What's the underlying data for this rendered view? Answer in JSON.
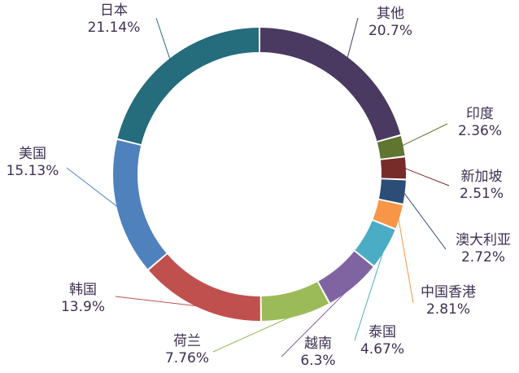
{
  "chart_data": {
    "type": "pie",
    "variant": "donut",
    "title": "",
    "categories": [
      "其他",
      "印度",
      "新加坡",
      "澳大利亚",
      "中国香港",
      "泰国",
      "越南",
      "荷兰",
      "韩国",
      "美国",
      "日本"
    ],
    "values": [
      20.7,
      2.36,
      2.51,
      2.72,
      2.81,
      4.67,
      6.3,
      7.76,
      13.9,
      15.13,
      21.14
    ],
    "value_labels": [
      "20.7%",
      "2.36%",
      "2.51%",
      "2.72%",
      "2.81%",
      "4.67%",
      "6.3%",
      "7.76%",
      "13.9%",
      "15.13%",
      "21.14%"
    ],
    "colors": [
      "#4a3a62",
      "#5f7530",
      "#772c2a",
      "#2c4d75",
      "#f79646",
      "#4bacc6",
      "#8064a2",
      "#9bbb59",
      "#c0504d",
      "#4f81bd",
      "#256c7c"
    ],
    "label_color": "#3d3052",
    "legend": "none"
  }
}
